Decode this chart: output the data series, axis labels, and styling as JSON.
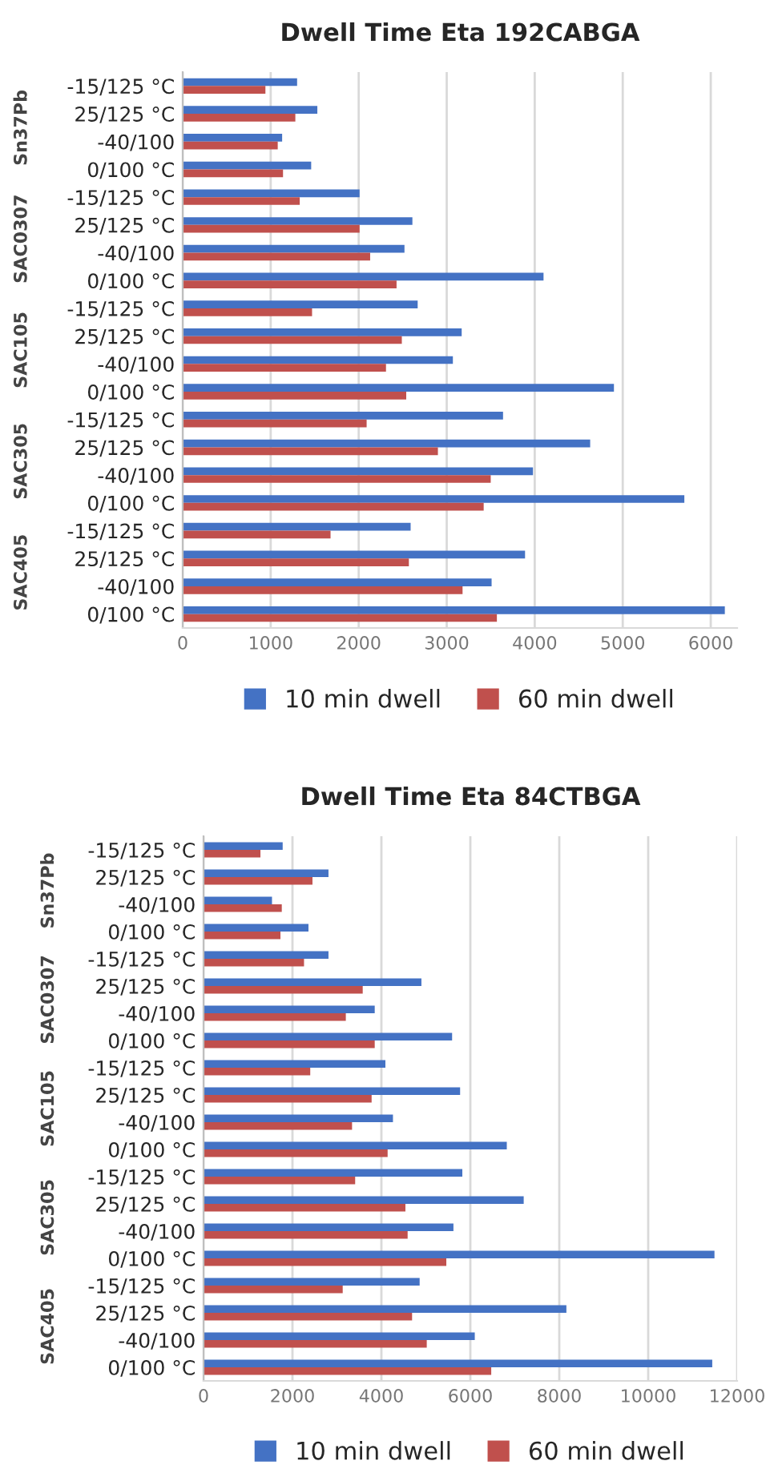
{
  "chart_data": [
    {
      "type": "bar",
      "orientation": "horizontal",
      "title": "Dwell Time Eta 192CABGA",
      "categories": [
        "-15/125 °C",
        "25/125 °C",
        "-40/100",
        "0/100 °C",
        "-15/125 °C",
        "25/125 °C",
        "-40/100",
        "0/100 °C",
        "-15/125 °C",
        "25/125 °C",
        "-40/100",
        "0/100 °C",
        "-15/125 °C",
        "25/125 °C",
        "-40/100",
        "0/100 °C",
        "-15/125 °C",
        "25/125 °C",
        "-40/100",
        "0/100 °C"
      ],
      "annotations": [
        "Sn37Pb",
        "SAC0307",
        "SAC105",
        "SAC305",
        "SAC405"
      ],
      "series": [
        {
          "name": "10 min dwell",
          "color": "#4472c4",
          "values": [
            1300,
            1530,
            1130,
            1460,
            2010,
            2610,
            2520,
            4100,
            2670,
            3170,
            3070,
            4900,
            3640,
            4630,
            3980,
            5700,
            2590,
            3890,
            3510,
            6160
          ]
        },
        {
          "name": "60 min dwell",
          "color": "#c0504d",
          "values": [
            940,
            1280,
            1080,
            1140,
            1330,
            2010,
            2130,
            2430,
            1470,
            2490,
            2310,
            2540,
            2090,
            2900,
            3500,
            3420,
            1680,
            2570,
            3180,
            3570
          ]
        }
      ],
      "xlim": [
        0,
        6300
      ],
      "xticks": [
        0,
        1000,
        2000,
        3000,
        4000,
        5000,
        6000
      ],
      "grid": "x",
      "legend": "bottom"
    },
    {
      "type": "bar",
      "orientation": "horizontal",
      "title": "Dwell Time Eta 84CTBGA",
      "categories": [
        "-15/125 °C",
        "25/125 °C",
        "-40/100",
        "0/100 °C",
        "-15/125 °C",
        "25/125 °C",
        "-40/100",
        "0/100 °C",
        "-15/125 °C",
        "25/125 °C",
        "-40/100",
        "0/100 °C",
        "-15/125 °C",
        "25/125 °C",
        "-40/100",
        "0/100 °C",
        "-15/125 °C",
        "25/125 °C",
        "-40/100",
        "0/100 °C"
      ],
      "annotations": [
        "Sn37Pb",
        "SAC0307",
        "SAC105",
        "SAC305",
        "SAC405"
      ],
      "series": [
        {
          "name": "10 min dwell",
          "color": "#4472c4",
          "values": [
            1780,
            2810,
            1540,
            2360,
            2810,
            4900,
            3850,
            5590,
            4090,
            5770,
            4260,
            6820,
            5820,
            7200,
            5620,
            11490,
            4860,
            8160,
            6100,
            11440
          ]
        },
        {
          "name": "60 min dwell",
          "color": "#c0504d",
          "values": [
            1280,
            2450,
            1760,
            1730,
            2260,
            3580,
            3200,
            3850,
            2400,
            3780,
            3340,
            4140,
            3410,
            4540,
            4590,
            5460,
            3130,
            4690,
            5020,
            6470
          ]
        }
      ],
      "xlim": [
        0,
        12000
      ],
      "xticks": [
        0,
        2000,
        4000,
        6000,
        8000,
        10000,
        12000
      ],
      "grid": "x",
      "legend": "bottom"
    }
  ]
}
